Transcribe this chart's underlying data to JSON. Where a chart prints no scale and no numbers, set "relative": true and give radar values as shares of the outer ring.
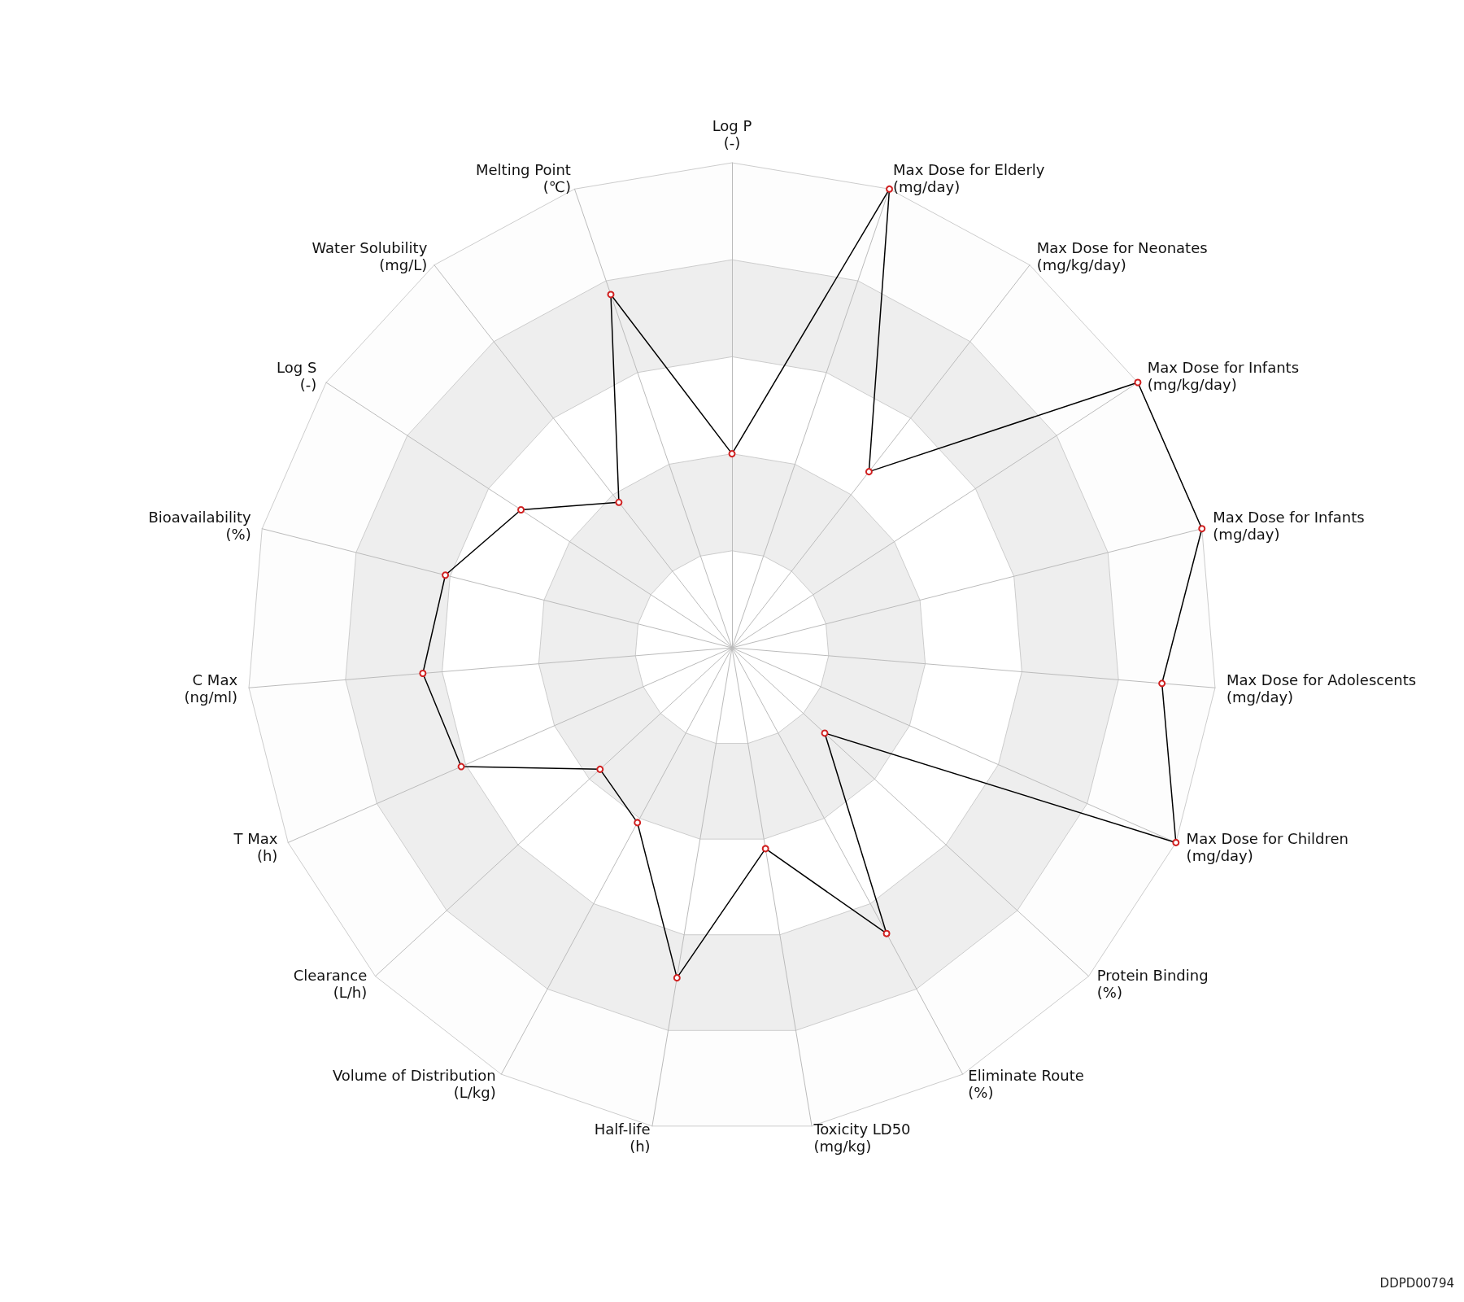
{
  "chart_data": {
    "type": "radar",
    "relative": true,
    "marker": "circle",
    "categories": [
      "Log P\n(-)",
      "Max Dose for Elderly\n(mg/day)",
      "Max Dose for Neonates\n(mg/kg/day)",
      "Max Dose for Infants\n(mg/kg/day)",
      "Max Dose for Infants\n(mg/day)",
      "Max Dose for Adolescents\n(mg/day)",
      "Max Dose for Children\n(mg/day)",
      "Protein Binding\n(%)",
      "Eliminate Route\n(%)",
      "Toxicity LD50\n(mg/kg)",
      "Half-life\n(h)",
      "Volume of Distribution\n(L/kg)",
      "Clearance\n(L/h)",
      "T Max\n(h)",
      "C Max\n(ng/ml)",
      "Bioavailability\n(%)",
      "Log S\n(-)",
      "Water Solubility\n(mg/L)",
      "Melting Point\n(℃)"
    ],
    "series": [
      {
        "color": "#000000",
        "values": [
          0.4,
          1.0,
          0.46,
          1.0,
          1.0,
          0.89,
          1.0,
          0.26,
          0.67,
          0.42,
          0.69,
          0.41,
          0.37,
          0.61,
          0.64,
          0.61,
          0.52,
          0.38,
          0.77
        ]
      }
    ],
    "annotations": [
      "DDPD00794"
    ]
  }
}
